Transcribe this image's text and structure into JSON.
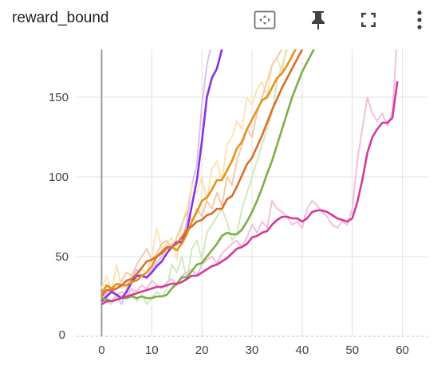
{
  "card": {
    "title": "reward_bound"
  },
  "toolbar": {
    "fit_domain": "fit-to-data-icon",
    "pin": "pin-icon",
    "fullscreen": "fullscreen-icon",
    "more": "more-vertical-icon"
  },
  "chart_data": {
    "type": "line",
    "title": "reward_bound",
    "xlabel": "",
    "ylabel": "",
    "xlim": [
      -5,
      65
    ],
    "ylim": [
      0,
      180
    ],
    "xticks": [
      0,
      10,
      20,
      30,
      40,
      50,
      60
    ],
    "yticks": [
      50,
      100,
      150
    ],
    "ytick_clipped": "0",
    "grid": true,
    "legend": "none",
    "series": [
      {
        "color": "#8b32e0",
        "smoothed_color": "#8b32e0",
        "raw_color": "#d9c0f5",
        "x": [
          0,
          1,
          2,
          3,
          4,
          5,
          6,
          7,
          8,
          9,
          10,
          11,
          12,
          13,
          14,
          15,
          16,
          17,
          18,
          19,
          20,
          21,
          22,
          23,
          24,
          25
        ],
        "raw": [
          22,
          27,
          30,
          25,
          20,
          30,
          36,
          42,
          38,
          36,
          42,
          46,
          50,
          55,
          58,
          60,
          58,
          72,
          95,
          108,
          145,
          170,
          185,
          190,
          200,
          210
        ],
        "smoothed": [
          22,
          25,
          28,
          26,
          24,
          28,
          34,
          38,
          38,
          37,
          40,
          44,
          47,
          52,
          56,
          59,
          59,
          66,
          82,
          98,
          122,
          150,
          162,
          168,
          180,
          190
        ]
      },
      {
        "color": "#e6931a",
        "smoothed_color": "#e6931a",
        "raw_color": "#fce4b3",
        "x": [
          0,
          1,
          2,
          3,
          4,
          5,
          6,
          7,
          8,
          9,
          10,
          11,
          12,
          13,
          14,
          15,
          16,
          17,
          18,
          19,
          20,
          21,
          22,
          23,
          24,
          25,
          26,
          27,
          28,
          29,
          30,
          31,
          32,
          33,
          34,
          35,
          36,
          37,
          38,
          39,
          40
        ],
        "raw": [
          30,
          38,
          28,
          45,
          30,
          32,
          38,
          35,
          42,
          40,
          50,
          68,
          55,
          58,
          62,
          48,
          70,
          80,
          95,
          90,
          100,
          85,
          105,
          110,
          98,
          120,
          125,
          135,
          130,
          150,
          145,
          155,
          160,
          150,
          170,
          175,
          165,
          185,
          190,
          195,
          200
        ],
        "smoothed": [
          27,
          32,
          30,
          33,
          32,
          32,
          34,
          35,
          38,
          40,
          44,
          50,
          52,
          55,
          56,
          54,
          58,
          64,
          72,
          78,
          85,
          87,
          92,
          98,
          98,
          104,
          110,
          118,
          122,
          130,
          136,
          142,
          148,
          150,
          156,
          162,
          165,
          170,
          176,
          182,
          188
        ]
      },
      {
        "color": "#d96f2b",
        "smoothed_color": "#d96f2b",
        "raw_color": "#f5c9a8",
        "x": [
          0,
          1,
          2,
          3,
          4,
          5,
          6,
          7,
          8,
          9,
          10,
          11,
          12,
          13,
          14,
          15,
          16,
          17,
          18,
          19,
          20,
          21,
          22,
          23,
          24,
          25,
          26,
          27,
          28,
          29,
          30,
          31,
          32,
          33,
          34,
          35,
          36,
          37,
          38,
          39,
          40
        ],
        "raw": [
          25,
          32,
          28,
          30,
          35,
          40,
          38,
          45,
          50,
          55,
          48,
          52,
          58,
          60,
          55,
          62,
          70,
          78,
          72,
          80,
          75,
          85,
          80,
          90,
          82,
          100,
          95,
          110,
          120,
          130,
          125,
          140,
          150,
          160,
          170,
          175,
          180,
          185,
          190,
          195,
          200
        ],
        "smoothed": [
          25,
          29,
          29,
          30,
          32,
          35,
          36,
          39,
          43,
          47,
          48,
          50,
          53,
          56,
          56,
          58,
          62,
          67,
          69,
          72,
          73,
          76,
          77,
          80,
          80,
          86,
          88,
          94,
          101,
          108,
          112,
          119,
          126,
          134,
          142,
          149,
          156,
          162,
          168,
          174,
          180
        ]
      },
      {
        "color": "#7bb045",
        "smoothed_color": "#7bb045",
        "raw_color": "#d3e8bd",
        "x": [
          0,
          1,
          2,
          3,
          4,
          5,
          6,
          7,
          8,
          9,
          10,
          11,
          12,
          13,
          14,
          15,
          16,
          17,
          18,
          19,
          20,
          21,
          22,
          23,
          24,
          25,
          26,
          27,
          28,
          29,
          30,
          31,
          32,
          33,
          34,
          35,
          36,
          37,
          38,
          39,
          40,
          41,
          42,
          43,
          44
        ],
        "raw": [
          24,
          22,
          20,
          26,
          28,
          25,
          30,
          22,
          26,
          20,
          24,
          28,
          25,
          30,
          45,
          40,
          50,
          35,
          55,
          60,
          48,
          65,
          70,
          75,
          80,
          72,
          60,
          65,
          80,
          90,
          100,
          110,
          120,
          130,
          140,
          160,
          170,
          180,
          190,
          195,
          200,
          205,
          210,
          215,
          220
        ],
        "smoothed": [
          24,
          23,
          22,
          23,
          24,
          24,
          25,
          24,
          25,
          24,
          24,
          25,
          25,
          26,
          30,
          33,
          37,
          37,
          41,
          45,
          46,
          50,
          54,
          58,
          63,
          65,
          64,
          64,
          67,
          72,
          78,
          85,
          93,
          102,
          110,
          120,
          130,
          140,
          150,
          158,
          166,
          172,
          178,
          184,
          190
        ]
      },
      {
        "color": "#d6399a",
        "smoothed_color": "#d6399a",
        "raw_color": "#f3c0dd",
        "x": [
          0,
          1,
          2,
          3,
          4,
          5,
          6,
          7,
          8,
          9,
          10,
          11,
          12,
          13,
          14,
          15,
          16,
          17,
          18,
          19,
          20,
          21,
          22,
          23,
          24,
          25,
          26,
          27,
          28,
          29,
          30,
          31,
          32,
          33,
          34,
          35,
          36,
          37,
          38,
          39,
          40,
          41,
          42,
          43,
          44,
          45,
          46,
          47,
          48,
          49,
          50,
          51,
          52,
          53,
          54,
          55,
          56,
          57,
          58,
          59
        ],
        "raw": [
          20,
          24,
          22,
          26,
          28,
          25,
          30,
          28,
          32,
          30,
          35,
          32,
          30,
          34,
          36,
          32,
          38,
          40,
          42,
          38,
          45,
          48,
          50,
          46,
          52,
          55,
          58,
          60,
          56,
          62,
          70,
          65,
          72,
          68,
          85,
          80,
          78,
          75,
          70,
          72,
          68,
          80,
          85,
          82,
          78,
          75,
          70,
          68,
          72,
          70,
          80,
          110,
          130,
          150,
          140,
          135,
          140,
          132,
          140,
          190
        ],
        "smoothed": [
          20,
          22,
          22,
          23,
          24,
          25,
          26,
          27,
          28,
          29,
          30,
          31,
          31,
          32,
          33,
          33,
          34,
          36,
          38,
          38,
          40,
          42,
          44,
          45,
          47,
          49,
          52,
          55,
          56,
          58,
          62,
          63,
          65,
          66,
          70,
          73,
          75,
          75,
          74,
          74,
          72,
          74,
          78,
          79,
          79,
          78,
          76,
          74,
          73,
          72,
          74,
          84,
          98,
          115,
          125,
          130,
          134,
          134,
          137,
          160
        ]
      }
    ]
  }
}
